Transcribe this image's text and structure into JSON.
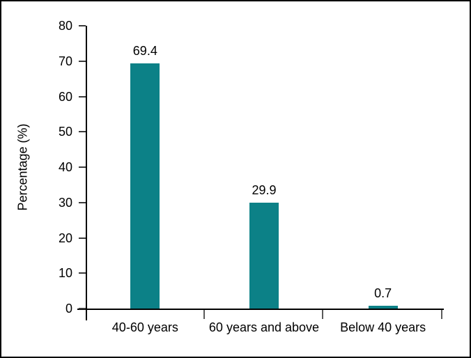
{
  "chart_data": {
    "type": "bar",
    "title": "",
    "categories": [
      "40-60 years",
      "60 years and above",
      "Below 40 years"
    ],
    "values": [
      69.4,
      29.9,
      0.7
    ],
    "value_labels": [
      "69.4",
      "29.9",
      "0.7"
    ],
    "xlabel": "",
    "ylabel": "Percentage (%)",
    "ylim": [
      0,
      80
    ],
    "yticks": [
      0,
      10,
      20,
      30,
      40,
      50,
      60,
      70,
      80
    ],
    "grid": false,
    "legend_position": "none",
    "bar_color": "#0C8187",
    "axis_color": "#000000",
    "text_color": "#000000",
    "background_color": "#FFFFFF",
    "frame_border_color": "#000000"
  }
}
